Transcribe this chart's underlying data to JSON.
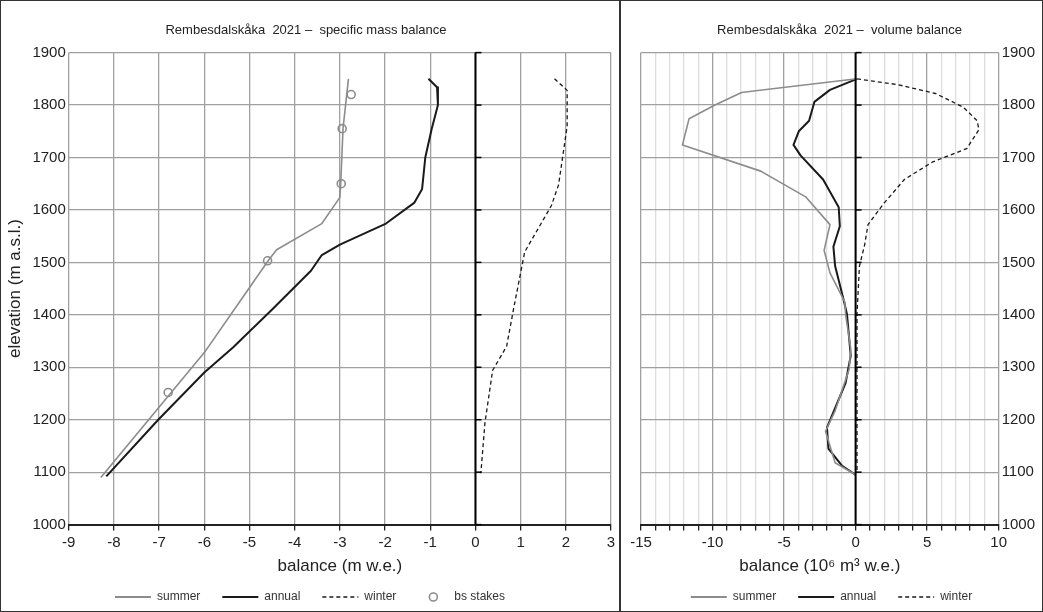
{
  "chart_data": [
    {
      "type": "line",
      "title": "Rembesdalskåka  2021 –  specific mass balance",
      "xlabel": "balance (m w.e.)",
      "ylabel": "elevation (m a.s.l.)",
      "xlim": [
        -9,
        3
      ],
      "ylim": [
        1000,
        1900
      ],
      "xticks": [
        -9,
        -8,
        -7,
        -6,
        -5,
        -4,
        -3,
        -2,
        -1,
        0,
        1,
        2,
        3
      ],
      "yticks": [
        1000,
        1100,
        1200,
        1300,
        1400,
        1500,
        1600,
        1700,
        1800,
        1900
      ],
      "grid": true,
      "legend": "bottom",
      "ref_lines": [
        {
          "axis": "x",
          "value": 0,
          "color": "#000000"
        }
      ],
      "series": [
        {
          "name": "summer",
          "type": "line",
          "color": "#8c8c8c",
          "line_style": "solid",
          "marker": "none",
          "x": [
            -2.81,
            -2.93,
            -2.98,
            -3.0,
            -3.4,
            -4.4,
            -4.58,
            -6.0,
            -8.29
          ],
          "values": [
            1850,
            1756,
            1654,
            1624,
            1574,
            1524,
            1504,
            1328,
            1090
          ]
        },
        {
          "name": "annual",
          "type": "line",
          "color": "#1a1a1a",
          "line_style": "solid",
          "marker": "none",
          "x": [
            -1.04,
            -0.85,
            -0.83,
            -0.97,
            -1.11,
            -1.18,
            -1.35,
            -1.98,
            -3.0,
            -3.4,
            -3.64,
            -4.5,
            -5.36,
            -6.0,
            -7.02,
            -8.17
          ],
          "values": [
            1850,
            1834,
            1800,
            1754,
            1700,
            1640,
            1614,
            1574,
            1534,
            1514,
            1484,
            1410,
            1338,
            1290,
            1200,
            1092
          ]
        },
        {
          "name": "winter",
          "type": "line",
          "color": "#1a1a1a",
          "line_style": "dashed",
          "marker": "none",
          "x": [
            1.75,
            2.03,
            2.03,
            1.84,
            1.68,
            1.09,
            0.85,
            0.69,
            0.38,
            0.21,
            0.12
          ],
          "values": [
            1850,
            1828,
            1760,
            1648,
            1608,
            1520,
            1414,
            1340,
            1294,
            1194,
            1098
          ]
        },
        {
          "name": "bs stakes",
          "type": "scatter",
          "color": "#8c8c8c",
          "marker": "circle",
          "x": [
            -2.75,
            -2.95,
            -2.97,
            -4.6,
            -6.8
          ],
          "values": [
            1820,
            1755,
            1650,
            1503,
            1252
          ]
        }
      ]
    },
    {
      "type": "line",
      "title": "Rembesdalskåka  2021 –  volume balance",
      "xlabel": "balance (10⁶ m³ w.e.)",
      "xlim": [
        -15,
        10
      ],
      "ylim": [
        1000,
        1900
      ],
      "xticks": [
        -15,
        {
          "value": -14,
          "label": null
        },
        {
          "value": -13,
          "label": null
        },
        {
          "value": -12,
          "label": null
        },
        {
          "value": -11,
          "label": null
        },
        -10,
        {
          "value": -9,
          "label": null
        },
        {
          "value": -8,
          "label": null
        },
        {
          "value": -7,
          "label": null
        },
        {
          "value": -6,
          "label": null
        },
        -5,
        {
          "value": -4,
          "label": null
        },
        {
          "value": -3,
          "label": null
        },
        {
          "value": -2,
          "label": null
        },
        {
          "value": -1,
          "label": null
        },
        0,
        {
          "value": 1,
          "label": null
        },
        {
          "value": 2,
          "label": null
        },
        {
          "value": 3,
          "label": null
        },
        {
          "value": 4,
          "label": null
        },
        5,
        {
          "value": 6,
          "label": null
        },
        {
          "value": 7,
          "label": null
        },
        {
          "value": 8,
          "label": null
        },
        {
          "value": 9,
          "label": null
        },
        10
      ],
      "yticks": [
        1000,
        1100,
        1200,
        1300,
        1400,
        1500,
        1600,
        1700,
        1800,
        1900
      ],
      "grid": true,
      "legend": "bottom",
      "ref_lines": [
        {
          "axis": "x",
          "value": 0,
          "color": "#000000"
        }
      ],
      "series": [
        {
          "name": "summer",
          "type": "line",
          "color": "#8c8c8c",
          "line_style": "solid",
          "marker": "none",
          "x": [
            0.1,
            -7.97,
            -9.9,
            -11.64,
            -12.1,
            -6.63,
            -3.49,
            -1.79,
            -2.2,
            -1.79,
            -0.75,
            -0.7,
            -0.34,
            -0.45,
            -1.43,
            -2.1,
            -1.43,
            0
          ],
          "values": [
            1850,
            1824,
            1799,
            1774,
            1724,
            1674,
            1625,
            1572,
            1523,
            1480,
            1424,
            1401,
            1336,
            1296,
            1217,
            1178,
            1118,
            1095
          ]
        },
        {
          "name": "annual",
          "type": "line",
          "color": "#1a1a1a",
          "line_style": "solid",
          "marker": "none",
          "x": [
            0.1,
            -1.79,
            -2.88,
            -3.25,
            -3.97,
            -4.34,
            -3.85,
            -2.27,
            -1.18,
            -1.1,
            -1.55,
            -1.43,
            -0.82,
            -0.6,
            -0.34,
            -0.7,
            -2.0,
            -1.9,
            -0.94,
            0
          ],
          "values": [
            1850,
            1829,
            1806,
            1770,
            1750,
            1724,
            1704,
            1658,
            1605,
            1569,
            1530,
            1493,
            1427,
            1401,
            1322,
            1270,
            1185,
            1145,
            1112,
            1095
          ]
        },
        {
          "name": "winter",
          "type": "line",
          "color": "#1a1a1a",
          "line_style": "dashed",
          "marker": "none",
          "x": [
            0.1,
            2.93,
            5.59,
            7.53,
            8.5,
            8.62,
            7.77,
            5.35,
            3.41,
            1.96,
            0.87,
            0.63,
            0.27,
            0.1,
            0.1
          ],
          "values": [
            1850,
            1839,
            1822,
            1796,
            1770,
            1753,
            1717,
            1691,
            1658,
            1612,
            1572,
            1533,
            1493,
            1401,
            1099
          ]
        }
      ]
    }
  ]
}
